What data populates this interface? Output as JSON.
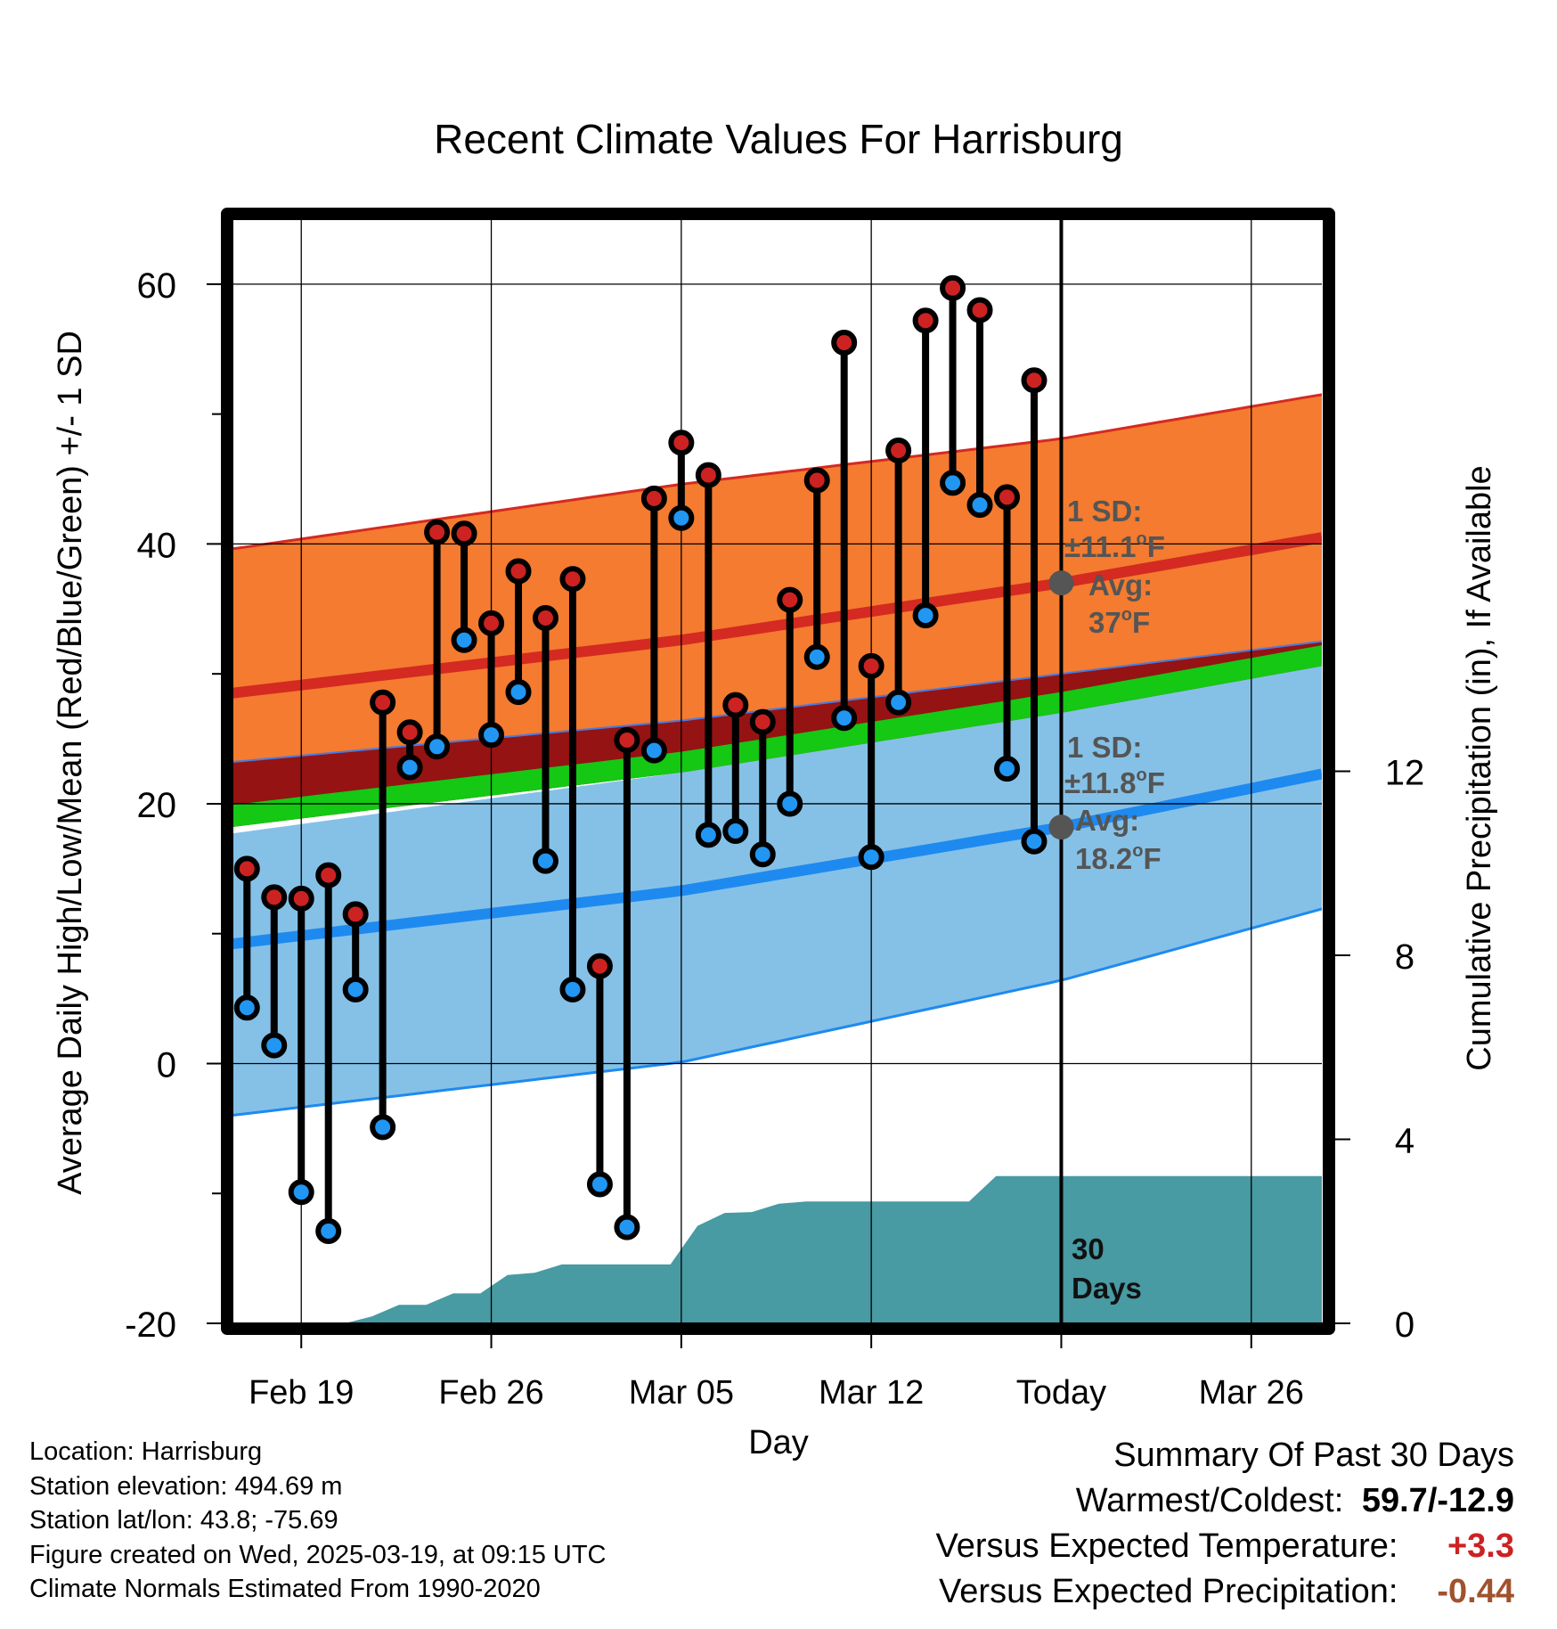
{
  "chart_data": {
    "type": "line",
    "title": "Recent Climate Values For Harrisburg",
    "xlabel": "Day",
    "ylabel": "Average Daily High/Low/Mean (Red/Blue/Green) +/- 1 SD",
    "ylabel_right": "Cumulative Precipitation (in), If Available",
    "x_ticks": [
      "Feb 19",
      "Feb 26",
      "Mar 05",
      "Mar 12",
      "Today",
      "Mar 26"
    ],
    "x_tick_day": [
      0,
      7,
      14,
      21,
      28,
      35
    ],
    "xlim_day": [
      -2.6,
      37.6
    ],
    "today_day": 28,
    "y_ticks": [
      -20,
      0,
      20,
      40,
      60
    ],
    "ylim": [
      -20,
      65
    ],
    "y2_ticks": [
      0,
      4,
      8,
      12
    ],
    "y2lim": [
      0,
      24
    ],
    "grid": true,
    "normals": {
      "day": [
        -2.6,
        14,
        28,
        37.6
      ],
      "high_mean": [
        28.5,
        32.6,
        37.0,
        40.5
      ],
      "high_upper": [
        39.6,
        44.6,
        48.1,
        51.5
      ],
      "high_lower": [
        23.2,
        26.4,
        30.0,
        32.5
      ],
      "low_mean": [
        9.2,
        13.3,
        18.2,
        22.3
      ],
      "low_upper": [
        17.7,
        22.4,
        27.0,
        30.7
      ],
      "low_lower": [
        -4.0,
        0.1,
        6.4,
        11.9
      ],
      "mean_upper": [
        19.9,
        24.0,
        28.6,
        32.2
      ],
      "mean_lower": [
        18.2,
        22.4,
        27.0,
        30.6
      ]
    },
    "daily": {
      "day": [
        -2,
        -1,
        0,
        1,
        2,
        3,
        4,
        5,
        6,
        7,
        8,
        9,
        10,
        11,
        12,
        13,
        14,
        15,
        16,
        17,
        18,
        19,
        20,
        21,
        22,
        23,
        24,
        25,
        26,
        27
      ],
      "high": [
        15.0,
        12.8,
        12.7,
        14.5,
        11.5,
        27.8,
        25.5,
        40.9,
        40.8,
        33.9,
        37.9,
        34.3,
        37.3,
        7.5,
        24.9,
        43.5,
        47.8,
        45.3,
        27.6,
        26.3,
        35.7,
        44.9,
        55.5,
        30.6,
        47.2,
        57.2,
        59.7,
        58.0,
        43.6,
        52.6
      ],
      "low": [
        4.3,
        1.4,
        -9.9,
        -12.9,
        5.7,
        -4.9,
        22.8,
        24.4,
        32.6,
        25.3,
        28.6,
        15.6,
        5.7,
        -9.3,
        -12.6,
        24.1,
        42.0,
        17.6,
        17.9,
        16.1,
        20.0,
        31.3,
        26.6,
        15.9,
        27.8,
        34.5,
        44.7,
        43.0,
        22.7,
        17.1
      ]
    },
    "precip": {
      "day": [
        -2.6,
        0.6,
        1.6,
        2.6,
        3.6,
        4.6,
        5.6,
        6.6,
        7.6,
        8.6,
        9.6,
        10.6,
        11.6,
        12.6,
        13.6,
        14.6,
        15.6,
        16.6,
        17.6,
        18.6,
        19.6,
        20.6,
        21.6,
        22.6,
        23.6,
        24.6,
        25.6,
        26.6,
        37.6
      ],
      "cumulative": [
        0.0,
        0.0,
        0.0,
        0.15,
        0.4,
        0.4,
        0.65,
        0.65,
        1.05,
        1.1,
        1.28,
        1.28,
        1.28,
        1.28,
        1.28,
        2.12,
        2.4,
        2.42,
        2.6,
        2.65,
        2.65,
        2.65,
        2.65,
        2.65,
        2.65,
        2.65,
        3.2,
        3.2,
        3.2
      ]
    },
    "annotations": {
      "high_sd_label": "1 SD:",
      "high_sd_value": "±11.1",
      "high_avg_label": "Avg:",
      "high_avg_value": "37",
      "low_sd_label": "1 SD:",
      "low_sd_value": "±11.8",
      "low_avg_label": "Avg:",
      "low_avg_value": "18.2",
      "deg_unit": "o",
      "f_unit": "F",
      "days_count": "30",
      "days_label": "Days"
    },
    "colors": {
      "high_band": "#f47b2f",
      "high_line": "#d42a22",
      "high_edge": "#d42a22",
      "mean_upper_band": "#951312",
      "mean_band": "#14c814",
      "low_band": "#85c1e7",
      "low_line": "#1e8af0",
      "low_edge": "#1e8af0",
      "precip": "#489aa3",
      "high_dot": "#cc2222",
      "low_dot": "#2196f3",
      "annot": "#555555",
      "stem": "#000000"
    }
  },
  "info": {
    "location": "Location: Harrisburg",
    "elevation": "Station elevation: 494.69 m",
    "latlon": "Station lat/lon: 43.8; -75.69",
    "created": "Figure created on Wed, 2025-03-19, at 09:15 UTC",
    "normals": "Climate Normals Estimated From 1990-2020"
  },
  "summary": {
    "title": "Summary Of Past 30 Days",
    "warm_cold_label": "Warmest/Coldest:",
    "warm_cold_value": "59.7/-12.9",
    "temp_label": "Versus Expected Temperature:",
    "temp_value": "+3.3",
    "temp_color": "#cc2222",
    "precip_label": "Versus Expected Precipitation:",
    "precip_value": "-0.44",
    "precip_color": "#a0522d"
  }
}
